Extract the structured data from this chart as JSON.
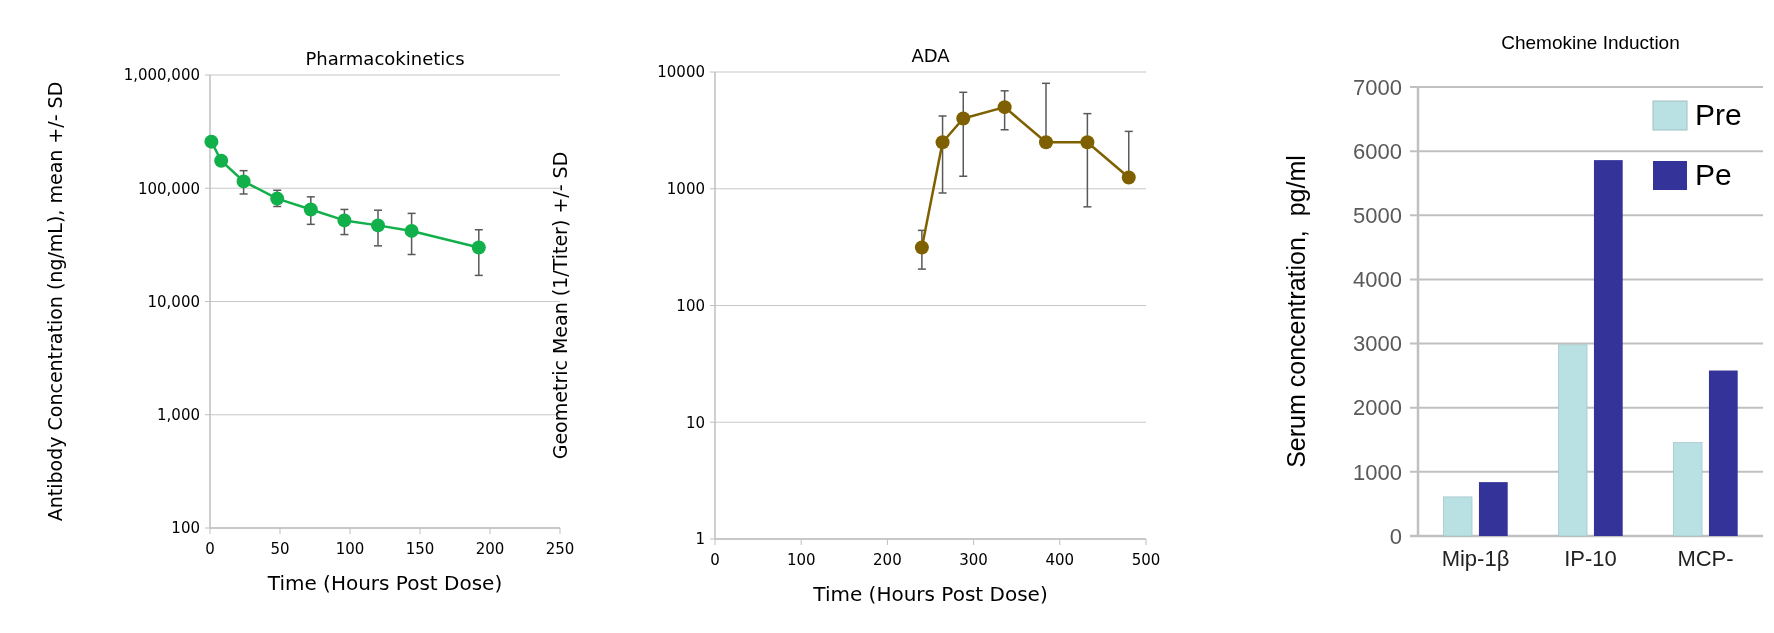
{
  "chart_data": [
    {
      "type": "line",
      "title": "Pharmacokinetics",
      "xlabel": "Time (Hours Post Dose)",
      "ylabel": "Antibody Concentration (ng/mL), mean +/- SD",
      "log": "y",
      "grid": "y",
      "marker": "circle",
      "xlim": [
        0,
        250
      ],
      "xticks": [
        0,
        50,
        100,
        150,
        200,
        250
      ],
      "ylim": [
        100,
        1000000
      ],
      "yticks": [
        {
          "value": 100,
          "label": "100"
        },
        {
          "value": 1000,
          "label": "1,000"
        },
        {
          "value": 10000,
          "label": "10,000"
        },
        {
          "value": 100000,
          "label": "100,000"
        },
        {
          "value": 1000000,
          "label": "1,000,000"
        }
      ],
      "x": [
        1,
        8,
        24,
        48,
        72,
        96,
        120,
        144,
        192
      ],
      "series": [
        {
          "color": "#12b04a",
          "values": [
            258000,
            175000,
            115000,
            81000,
            65000,
            52000,
            47000,
            42000,
            30000
          ],
          "errors": [
            null,
            null,
            [
              89000,
              143000
            ],
            [
              69000,
              96000
            ],
            [
              48000,
              84000
            ],
            [
              39000,
              65000
            ],
            [
              31000,
              64000
            ],
            [
              26000,
              60000
            ],
            [
              17000,
              43000
            ]
          ]
        }
      ]
    },
    {
      "type": "line",
      "title": "ADA",
      "xlabel": "Time (Hours Post Dose)",
      "ylabel": "Geometric Mean (1/Titer) +/- SD",
      "log": "y",
      "grid": "y",
      "marker": "circle",
      "xlim": [
        0,
        500
      ],
      "xticks": [
        0,
        100,
        200,
        300,
        400,
        500
      ],
      "ylim": [
        1,
        10000
      ],
      "yticks": [
        1,
        10,
        100,
        1000,
        10000
      ],
      "x": [
        240,
        264,
        288,
        336,
        384,
        432,
        480
      ],
      "series": [
        {
          "color": "#7f6000",
          "values": [
            314,
            2500,
            4000,
            5000,
            2500,
            2500,
            1250
          ],
          "errors": [
            [
              205,
              440
            ],
            [
              920,
              4200
            ],
            [
              1280,
              6700
            ],
            [
              3200,
              6900
            ],
            [
              2500,
              8000
            ],
            [
              700,
              4400
            ],
            [
              1250,
              3100
            ]
          ]
        }
      ]
    },
    {
      "type": "bar",
      "title": "Chemokine Induction",
      "ylabel": "Serum concentration,  pg/ml",
      "grid": "y",
      "legend": "top right",
      "ylim": [
        0,
        7000
      ],
      "yticks": [
        0,
        1000,
        2000,
        3000,
        4000,
        5000,
        6000,
        7000
      ],
      "categories": [
        "Mip-1β",
        "IP-10",
        "MCP-"
      ],
      "series": [
        {
          "name": "Pre",
          "color": "#b9e0e3",
          "values": [
            610,
            2980,
            1460
          ]
        },
        {
          "name": "Pe",
          "color": "#343399",
          "values": [
            840,
            5860,
            2580
          ]
        }
      ]
    }
  ]
}
